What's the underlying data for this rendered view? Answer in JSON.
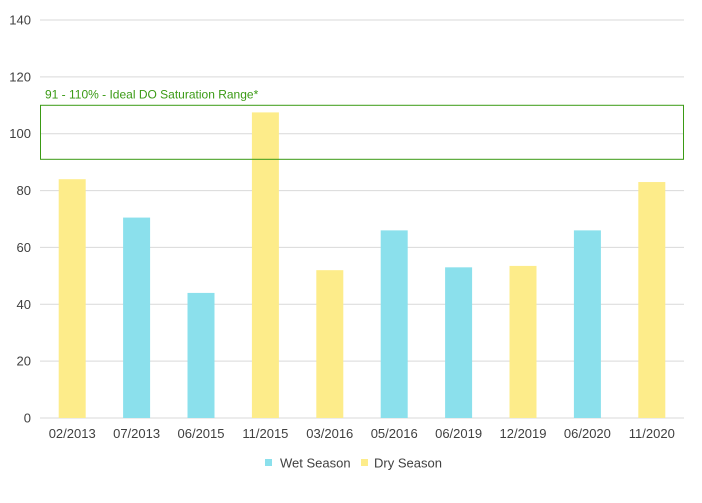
{
  "chart_data": {
    "type": "bar",
    "categories": [
      "02/2013",
      "07/2013",
      "06/2015",
      "11/2015",
      "03/2016",
      "05/2016",
      "06/2019",
      "12/2019",
      "06/2020",
      "11/2020"
    ],
    "values": [
      84,
      70.5,
      44,
      107.5,
      52,
      66,
      53,
      53.5,
      66,
      83
    ],
    "season": [
      "Dry Season",
      "Wet Season",
      "Wet Season",
      "Dry Season",
      "Dry Season",
      "Wet Season",
      "Wet Season",
      "Dry Season",
      "Wet Season",
      "Dry Season"
    ],
    "series": [
      {
        "name": "Wet Season",
        "color": "#8be0ec"
      },
      {
        "name": "Dry Season",
        "color": "#fdec8a"
      }
    ],
    "ylim": [
      0,
      140
    ],
    "yticks": [
      "0",
      "20",
      "40",
      "60",
      "80",
      "100",
      "120",
      "140"
    ],
    "ytick_values": [
      0,
      20,
      40,
      60,
      80,
      100,
      120,
      140
    ],
    "grid": true,
    "legend_position": "bottom",
    "annotation": {
      "label": "91 - 110% - Ideal DO Saturation Range*",
      "y_min": 91,
      "y_max": 110,
      "color": "#3a9a14"
    }
  }
}
